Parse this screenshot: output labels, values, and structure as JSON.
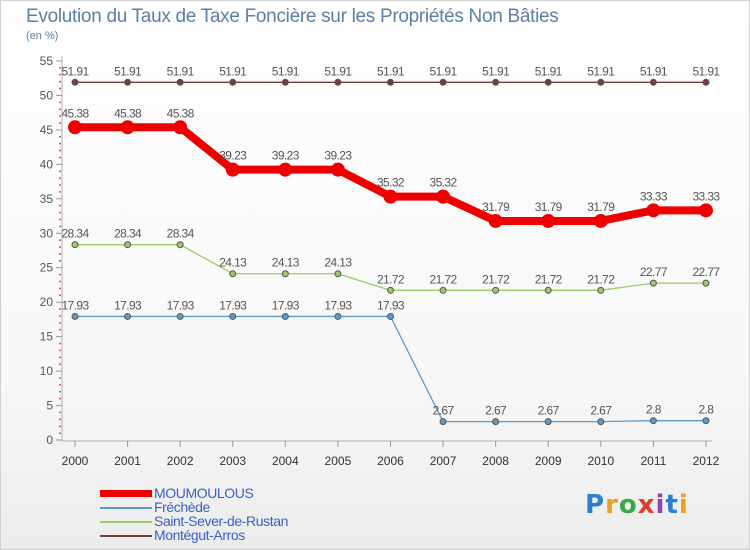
{
  "header": {
    "title": "Evolution du Taux de Taxe Foncière sur les Propriétés Non Bâties",
    "unit": "(en %)"
  },
  "logo": {
    "text": "Proxiti",
    "letters": [
      "P",
      "r",
      "o",
      "x",
      "i",
      "t",
      "i"
    ],
    "colors": [
      "#2a7fd4",
      "#e8a020",
      "#3aa84a",
      "#e23a2a",
      "#8e44ad",
      "#2a7fd4",
      "#e8a020"
    ]
  },
  "chart_data": {
    "type": "line",
    "title": "Evolution du Taux de Taxe Foncière sur les Propriétés Non Bâties",
    "ylabel": "(en %)",
    "xlabel": "",
    "ylim": [
      0,
      55
    ],
    "yticks": [
      0,
      5,
      10,
      15,
      20,
      25,
      30,
      35,
      40,
      45,
      50,
      55
    ],
    "grid": false,
    "x": [
      "2000",
      "2001",
      "2002",
      "2003",
      "2004",
      "2005",
      "2006",
      "2007",
      "2008",
      "2009",
      "2010",
      "2011",
      "2012"
    ],
    "series": [
      {
        "name": "Montégut-Arros",
        "color": "#7a3a3a",
        "values": [
          51.91,
          51.91,
          51.91,
          51.91,
          51.91,
          51.91,
          51.91,
          51.91,
          51.91,
          51.91,
          51.91,
          51.91,
          51.91
        ],
        "labels": [
          "51.91",
          "51.91",
          "51.91",
          "51.91",
          "51.91",
          "51.91",
          "51.91",
          "51.91",
          "51.91",
          "51.91",
          "51.91",
          "51.91",
          "51.91"
        ]
      },
      {
        "name": "Saint-Sever-de-Rustan",
        "color": "#99cc66",
        "values": [
          28.34,
          28.34,
          28.34,
          24.13,
          24.13,
          24.13,
          21.72,
          21.72,
          21.72,
          21.72,
          21.72,
          22.77,
          22.77
        ],
        "labels": [
          "28.34",
          "28.34",
          "28.34",
          "24.13",
          "24.13",
          "24.13",
          "21.72",
          "21.72",
          "21.72",
          "21.72",
          "21.72",
          "22.77",
          "22.77"
        ]
      },
      {
        "name": "Fréchède",
        "color": "#5b9bcc",
        "values": [
          17.93,
          17.93,
          17.93,
          17.93,
          17.93,
          17.93,
          17.93,
          2.67,
          2.67,
          2.67,
          2.67,
          2.8,
          2.8
        ],
        "labels": [
          "17.93",
          "17.93",
          "17.93",
          "17.93",
          "17.93",
          "17.93",
          "17.93",
          "2.67",
          "2.67",
          "2.67",
          "2.67",
          "2.8",
          "2.8"
        ]
      },
      {
        "name": "MOUMOULOUS",
        "color": "#ee0000",
        "values": [
          45.38,
          45.38,
          45.38,
          39.23,
          39.23,
          39.23,
          35.32,
          35.32,
          31.79,
          31.79,
          31.79,
          33.33,
          33.33
        ],
        "labels": [
          "45.38",
          "45.38",
          "45.38",
          "39.23",
          "39.23",
          "39.23",
          "35.32",
          "35.32",
          "31.79",
          "31.79",
          "31.79",
          "33.33",
          "33.33"
        ]
      }
    ],
    "legend": [
      {
        "name": "MOUMOULOUS",
        "color": "#ee0000"
      },
      {
        "name": "Fréchède",
        "color": "#5b9bcc"
      },
      {
        "name": "Saint-Sever-de-Rustan",
        "color": "#99cc66"
      },
      {
        "name": "Montégut-Arros",
        "color": "#7a3a3a"
      }
    ],
    "legend_position": "bottom-left"
  }
}
